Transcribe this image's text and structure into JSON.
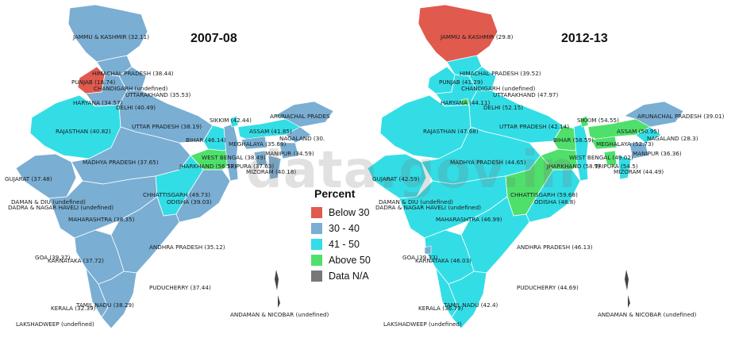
{
  "colors": {
    "below_30": "#e05a4e",
    "range_30_40": "#7aaed3",
    "range_41_50": "#33dde6",
    "above_50": "#4fe06b",
    "na": "#777777"
  },
  "watermark": "data.gov.in",
  "legend": {
    "title": "Percent",
    "items": [
      {
        "label": "Below 30",
        "color": "#e05a4e"
      },
      {
        "label": "30 - 40",
        "color": "#7aaed3"
      },
      {
        "label": "41 - 50",
        "color": "#33dde6"
      },
      {
        "label": "Above 50",
        "color": "#4fe06b"
      },
      {
        "label": "Data N/A",
        "color": "#777777"
      }
    ]
  },
  "maps": [
    {
      "year": "2007-08",
      "labels": [
        {
          "id": "jk",
          "text": "JAMMU & KASHMIR (32.11)"
        },
        {
          "id": "hp",
          "text": "HIMACHAL PRADESH (38.44)"
        },
        {
          "id": "pb",
          "text": "PUNJAB (18.74)"
        },
        {
          "id": "ch",
          "text": "CHANDIGARH (undefined)"
        },
        {
          "id": "uk",
          "text": "UTTARAKHAND (35.53)"
        },
        {
          "id": "hr",
          "text": "HARYANA (34.57)"
        },
        {
          "id": "dl",
          "text": "DELHI (40.49)"
        },
        {
          "id": "ar",
          "text": "ARUNACHAL PRADES"
        },
        {
          "id": "sk",
          "text": "SIKKIM (42.44)"
        },
        {
          "id": "rj",
          "text": "RAJASTHAN (40.82)"
        },
        {
          "id": "up",
          "text": "UTTAR PRADESH (38.19)"
        },
        {
          "id": "as",
          "text": "ASSAM (41.85)"
        },
        {
          "id": "nl",
          "text": "NAGALAND (30."
        },
        {
          "id": "br",
          "text": "BIHAR (46.14)"
        },
        {
          "id": "ml",
          "text": "MEGHALAYA (35.69)"
        },
        {
          "id": "mn",
          "text": "MANIPUR (34.59)"
        },
        {
          "id": "mp",
          "text": "MADHYA PRADESH (37.65)"
        },
        {
          "id": "wb",
          "text": "WEST BENGAL (38.49)"
        },
        {
          "id": "tr",
          "text": "TRIPURA (37.63)"
        },
        {
          "id": "jh",
          "text": "JHARKHAND (56.57)"
        },
        {
          "id": "mz",
          "text": "MIZORAM (40.18)"
        },
        {
          "id": "gj",
          "text": "GUJARAT (37.48)"
        },
        {
          "id": "dd",
          "text": "DAMAN & DIU (undefined)"
        },
        {
          "id": "dn",
          "text": "DADRA & NAGAR HAVELI (undefined)"
        },
        {
          "id": "cg",
          "text": "CHHATTISGARH (49.73)"
        },
        {
          "id": "od",
          "text": "ODISHA (39.03)"
        },
        {
          "id": "mh",
          "text": "MAHARASHTRA (38.35)"
        },
        {
          "id": "ap",
          "text": "ANDHRA PRADESH (35.12)"
        },
        {
          "id": "ga",
          "text": "GOA (39.37)"
        },
        {
          "id": "ka",
          "text": "KARNATAKA (37.72)"
        },
        {
          "id": "py",
          "text": "PUDUCHERRY (37.44)"
        },
        {
          "id": "tn",
          "text": "TAMIL NADU (38.29)"
        },
        {
          "id": "kl",
          "text": "KERALA (32.39)"
        },
        {
          "id": "ld",
          "text": "LAKSHADWEEP (undefined)"
        },
        {
          "id": "an",
          "text": "ANDAMAN & NICOBAR (undefined)"
        }
      ]
    },
    {
      "year": "2012-13",
      "labels": [
        {
          "id": "jk",
          "text": "JAMMU & KASHMIR (29.8)"
        },
        {
          "id": "hp",
          "text": "HIMACHAL PRADESH (39.52)"
        },
        {
          "id": "pb",
          "text": "PUNJAB (41.29)"
        },
        {
          "id": "ch",
          "text": "CHANDIGARH (undefined)"
        },
        {
          "id": "uk",
          "text": "UTTARAKHAND (47.97)"
        },
        {
          "id": "hr",
          "text": "HARYANA (44.11)"
        },
        {
          "id": "dl",
          "text": "DELHI (52.15)"
        },
        {
          "id": "ar",
          "text": "ARUNACHAL PRADESH (39.01)"
        },
        {
          "id": "sk",
          "text": "SIKKIM (54.55)"
        },
        {
          "id": "rj",
          "text": "RAJASTHAN (47.68)"
        },
        {
          "id": "up",
          "text": "UTTAR PRADESH (42.14)"
        },
        {
          "id": "as",
          "text": "ASSAM (50.95)"
        },
        {
          "id": "nl",
          "text": "NAGALAND (28.3)"
        },
        {
          "id": "br",
          "text": "BIHAR (58.59)"
        },
        {
          "id": "ml",
          "text": "MEGHALAYA (52.73)"
        },
        {
          "id": "mn",
          "text": "MANIPUR (36.36)"
        },
        {
          "id": "mp",
          "text": "MADHYA PRADESH (44.65)"
        },
        {
          "id": "wb",
          "text": "WEST BENGAL (49.02)"
        },
        {
          "id": "tr",
          "text": "TRIPURA (54.5)"
        },
        {
          "id": "jh",
          "text": "JHARKHAND (58.9)"
        },
        {
          "id": "mz",
          "text": "MIZORAM (44.49)"
        },
        {
          "id": "gj",
          "text": "GUJARAT (42.59)"
        },
        {
          "id": "dd",
          "text": "DAMAN & DIU (undefined)"
        },
        {
          "id": "dn",
          "text": "DADRA & NAGAR HAVELI (undefined)"
        },
        {
          "id": "cg",
          "text": "CHHATTISGARH (59.68)"
        },
        {
          "id": "od",
          "text": "ODISHA (48.8)"
        },
        {
          "id": "mh",
          "text": "MAHARASHTRA (46.99)"
        },
        {
          "id": "ap",
          "text": "ANDHRA PRADESH (46.13)"
        },
        {
          "id": "ga",
          "text": "GOA (39.33)"
        },
        {
          "id": "ka",
          "text": "KARNATAKA (46.03)"
        },
        {
          "id": "py",
          "text": "PUDUCHERRY (44.69)"
        },
        {
          "id": "tn",
          "text": "TAMIL NADU (42.4)"
        },
        {
          "id": "kl",
          "text": "KERALA (36.79)"
        },
        {
          "id": "ld",
          "text": "LAKSHADWEEP (undefined)"
        },
        {
          "id": "an",
          "text": "ANDAMAN & NICOBAR (undefined)"
        }
      ]
    }
  ],
  "map_fills": [
    {
      "north": "#7aaed3",
      "jk": "#7aaed3",
      "pb": "#e05a4e",
      "rj_group": "#7aaed3",
      "west": "#33dde6",
      "central": "#7aaed3",
      "east": "#33dde6",
      "jh": "#4fe06b",
      "south": "#7aaed3",
      "ne": "#7aaed3",
      "ne2": "#33dde6"
    },
    {
      "north": "#33dde6",
      "jk": "#e05a4e",
      "pb": "#33dde6",
      "rj_group": "#33dde6",
      "west": "#33dde6",
      "central": "#33dde6",
      "east": "#4fe06b",
      "jh": "#4fe06b",
      "south": "#33dde6",
      "ne": "#4fe06b",
      "ne2": "#7aaed3"
    }
  ]
}
